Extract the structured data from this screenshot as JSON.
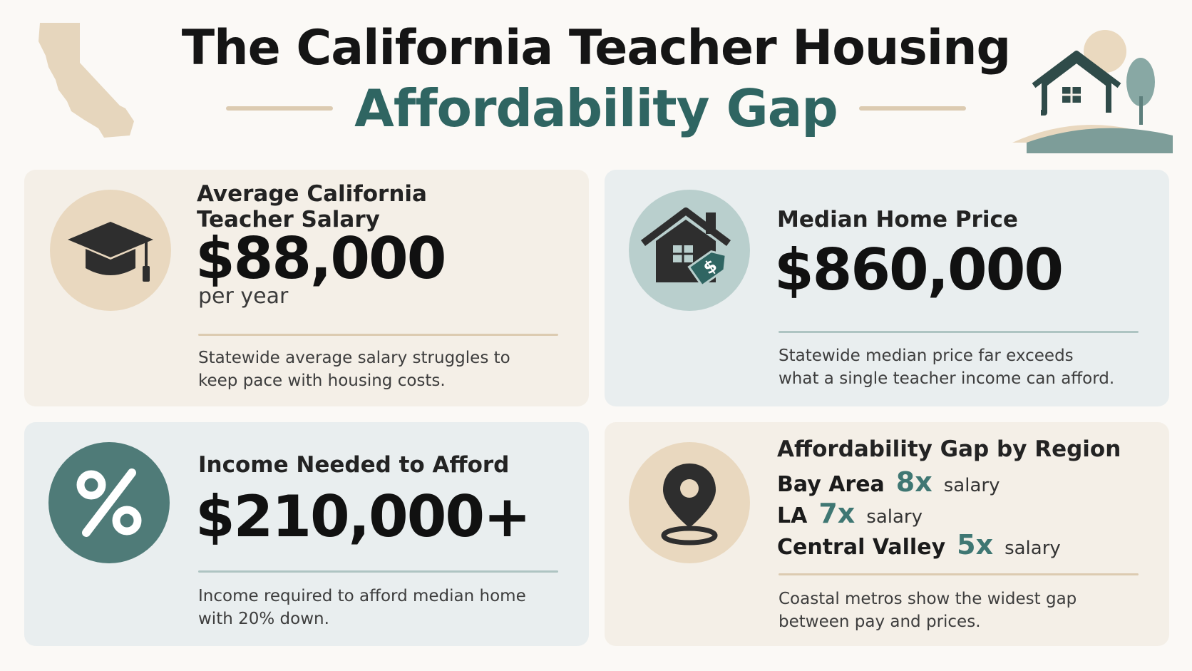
{
  "header": {
    "title": "The California Teacher Housing",
    "subtitle": "Affordability Gap"
  },
  "colors": {
    "accent_teal": "#2f6562",
    "beige": "#e9d8bf",
    "sage": "#b9cfcd",
    "card_beige": "#f4efe7",
    "card_blue": "#e9eeef"
  },
  "cards": {
    "salary": {
      "icon": "graduation-cap-icon",
      "label": "Average California\nTeacher Salary",
      "value": "$88,000",
      "unit": "per year",
      "desc": "Statewide average salary struggles to\nkeep pace with housing costs."
    },
    "home_price": {
      "icon": "house-price-tag-icon",
      "label": "Median Home Price",
      "value": "$860,000",
      "desc": "Statewide median price far exceeds\nwhat a single teacher income can afford."
    },
    "income_needed": {
      "icon": "percent-icon",
      "label": "Income Needed to Afford",
      "value": "$210,000+",
      "desc": "Income required to afford median home\nwith 20% down."
    },
    "regions": {
      "icon": "map-pin-icon",
      "label": "Affordability Gap by Region",
      "rows": [
        {
          "name": "Bay Area",
          "mult": "8x",
          "suffix": "salary"
        },
        {
          "name": "LA",
          "mult": "7x",
          "suffix": "salary"
        },
        {
          "name": "Central Valley",
          "mult": "5x",
          "suffix": "salary"
        }
      ],
      "desc": "Coastal metros show the widest gap\nbetween pay and prices."
    }
  }
}
